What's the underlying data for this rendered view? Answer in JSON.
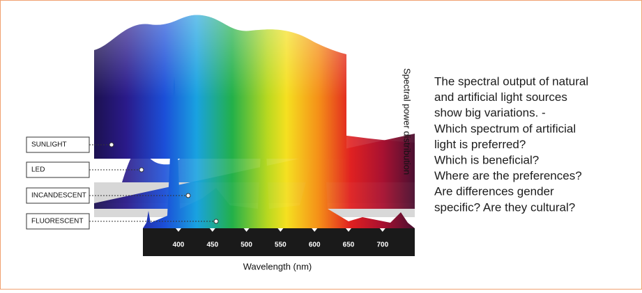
{
  "labels": [
    "SUNLIGHT",
    "LED",
    "INCANDESCENT",
    "FLUORESCENT"
  ],
  "axis": {
    "ticks": [
      400,
      450,
      500,
      550,
      600,
      650,
      700
    ],
    "title": "Wavelength (nm)"
  },
  "y_label": "Spectral power distribution",
  "text": {
    "lines": [
      "The spectral output of natural",
      "and artificial light sources",
      "show big variations. -",
      "Which spectrum of artificial",
      "light is preferred?",
      "Which is beneficial?",
      "Where are the preferences?",
      "Are differences gender",
      "specific? Are they cultural?"
    ]
  }
}
